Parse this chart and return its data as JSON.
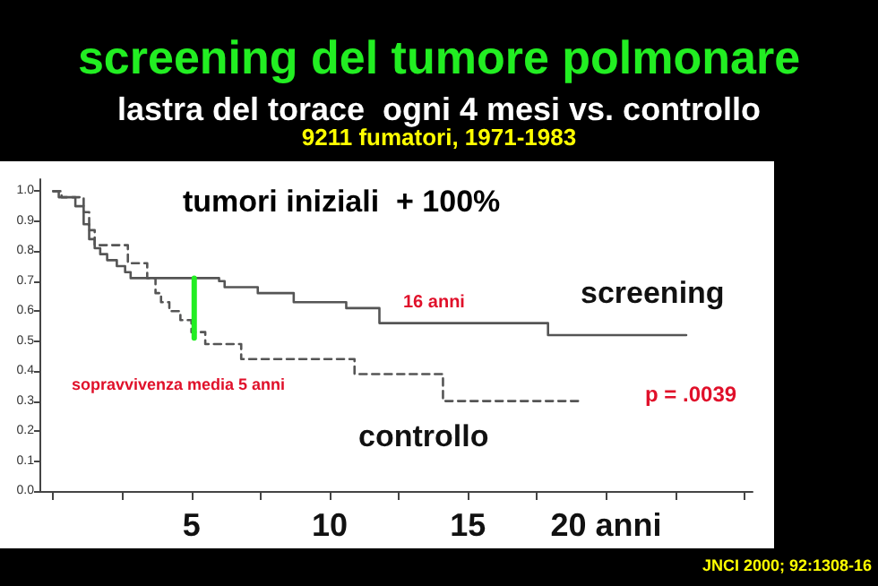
{
  "chart_data": {
    "type": "step",
    "title": "screening del tumore polmonare",
    "subtitle": "lastra del torace  ogni 4 mesi vs. controllo",
    "annotations": [
      "9211 fumatori, 1971-1983",
      "tumori iniziali  + 100%",
      "16 anni",
      "sopravvivenza media 5 anni",
      "p = .0039",
      "JNCI 2000; 92:1308-16"
    ],
    "series": [
      {
        "name": "screening",
        "color": "#555555",
        "line_style": "solid",
        "x": [
          0,
          0.2,
          0.8,
          1.1,
          1.3,
          1.5,
          1.7,
          1.95,
          2.3,
          2.6,
          2.8,
          6.0,
          6.2,
          7.4,
          8.7,
          10.6,
          11.8,
          17.9,
          22.9
        ],
        "values": [
          1.0,
          0.98,
          0.95,
          0.89,
          0.84,
          0.81,
          0.79,
          0.77,
          0.75,
          0.73,
          0.71,
          0.7,
          0.68,
          0.66,
          0.63,
          0.61,
          0.56,
          0.52,
          0.52
        ]
      },
      {
        "name": "controllo",
        "color": "#555555",
        "line_style": "dashed",
        "x": [
          0,
          0.3,
          1.1,
          1.3,
          1.5,
          2.7,
          3.4,
          3.7,
          3.9,
          4.2,
          4.6,
          5.0,
          5.5,
          6.8,
          10.9,
          14.1,
          19.0
        ],
        "values": [
          1.0,
          0.98,
          0.93,
          0.87,
          0.82,
          0.76,
          0.71,
          0.66,
          0.63,
          0.6,
          0.57,
          0.53,
          0.49,
          0.44,
          0.39,
          0.3,
          0.3
        ]
      },
      {
        "type": "line",
        "color": "#22ee22",
        "line_style": "solid",
        "x": [
          5.1,
          5.1
        ],
        "values": [
          0.51,
          0.71
        ]
      }
    ],
    "xlim": [
      -0.5,
      25.3
    ],
    "xticks": [
      {
        "value": 0,
        "label": null
      },
      {
        "value": 2.5,
        "label": null
      },
      5,
      {
        "value": 7.5,
        "label": null
      },
      10,
      {
        "value": 12.5,
        "label": null
      },
      15,
      {
        "value": 17.5,
        "label": null
      },
      {
        "value": 20,
        "label": "20 anni"
      },
      {
        "value": 22.5,
        "label": null
      },
      {
        "value": 25,
        "label": null
      }
    ],
    "ylim": [
      0,
      1.04
    ],
    "yticks": [
      {
        "value": 0,
        "label": "0.0"
      },
      0.1,
      0.2,
      0.3,
      0.4,
      0.5,
      0.6,
      0.7,
      0.8,
      0.9,
      {
        "value": 1,
        "label": "1.0"
      }
    ],
    "grid": false,
    "legend": false,
    "marker": "none"
  }
}
